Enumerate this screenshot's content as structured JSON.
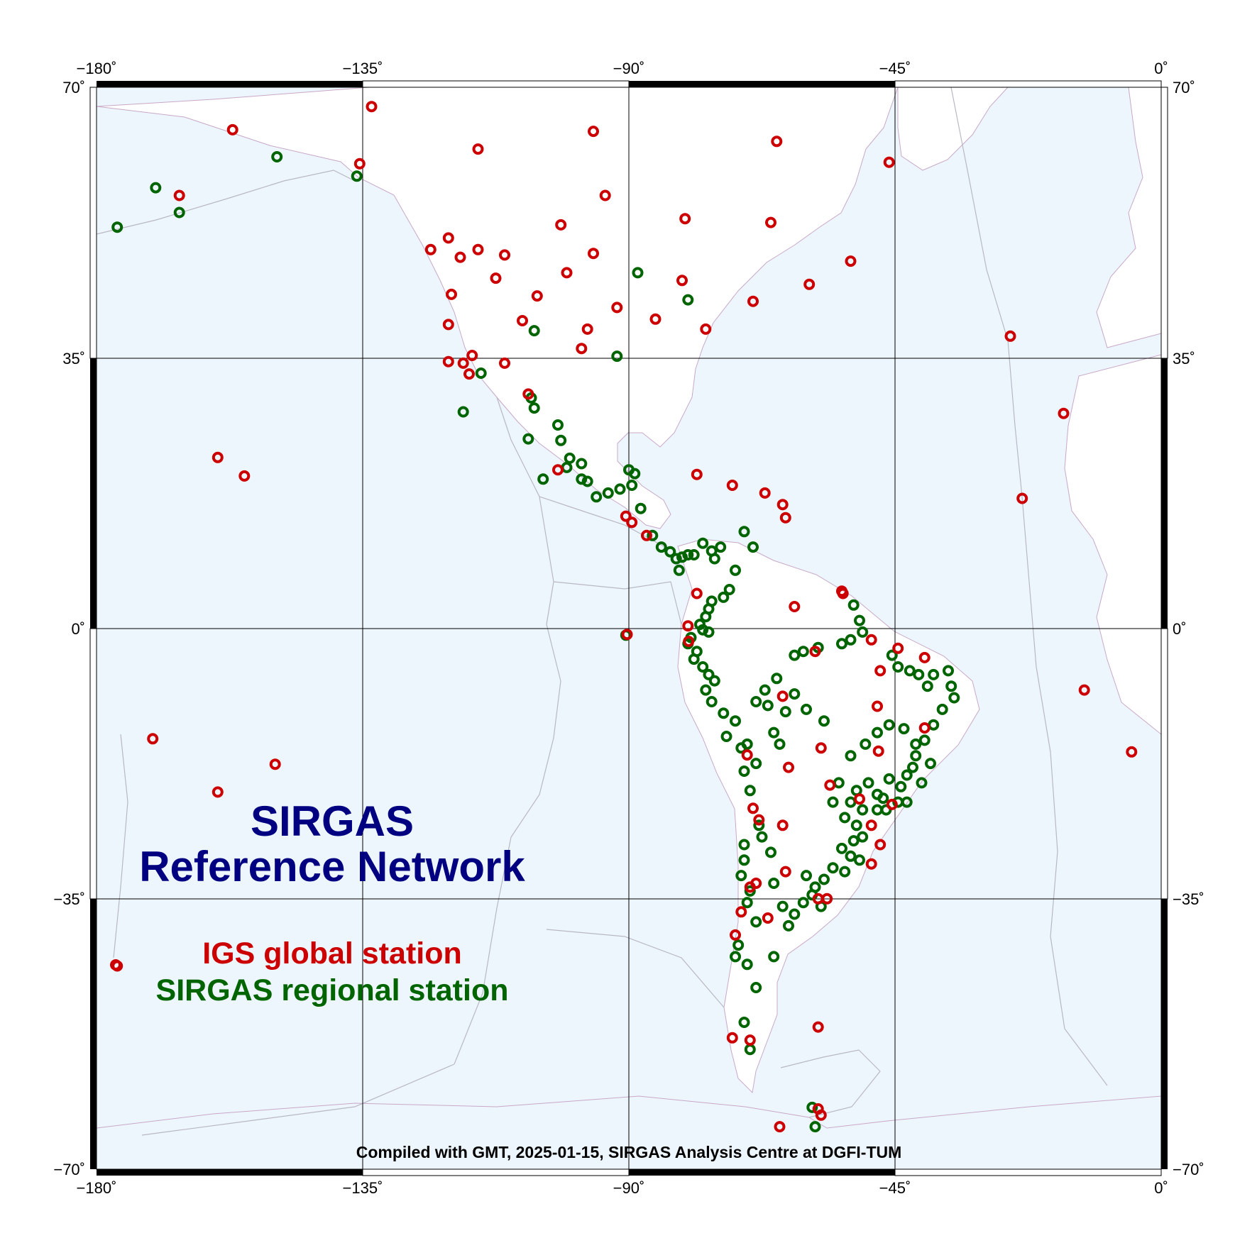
{
  "title": {
    "line1": "SIRGAS",
    "line2": "Reference Network"
  },
  "legend": {
    "igs_label": "IGS global station",
    "sirgas_label": "SIRGAS regional station"
  },
  "credit": "Compiled with GMT, 2025-01-15, SIRGAS Analysis Centre at DGFI-TUM",
  "axes": {
    "lon_ticks": [
      "−180˚",
      "−135˚",
      "−90˚",
      "−45˚",
      "0˚"
    ],
    "lat_ticks": [
      "70˚",
      "35˚",
      "0˚",
      "−35˚",
      "−70˚"
    ],
    "lon_range": [
      -180,
      0
    ],
    "lat_range": [
      -70,
      70
    ],
    "grid": true
  },
  "colors": {
    "ocean": "#eef6fd",
    "land": "#ffffff",
    "igs": "#cc0000",
    "sirgas": "#006400",
    "title": "#000080",
    "grid": "#000000",
    "plate_boundary": "#b8b8c4",
    "borders": "#d8b8d8"
  },
  "stations": {
    "igs": [
      [
        -133.5,
        67.5
      ],
      [
        -157.0,
        64.5
      ],
      [
        -96.0,
        64.3
      ],
      [
        -65.0,
        63.0
      ],
      [
        -115.5,
        62.0
      ],
      [
        -135.5,
        60.1
      ],
      [
        -46.0,
        60.3
      ],
      [
        -166.0,
        56.0
      ],
      [
        -94.0,
        56.0
      ],
      [
        -80.5,
        53.0
      ],
      [
        -66.0,
        52.5
      ],
      [
        -101.5,
        52.2
      ],
      [
        -120.5,
        50.5
      ],
      [
        -115.5,
        49.0
      ],
      [
        -123.5,
        49.0
      ],
      [
        -96.0,
        48.5
      ],
      [
        -111.0,
        48.3
      ],
      [
        -118.5,
        48.0
      ],
      [
        -52.5,
        47.5
      ],
      [
        -100.5,
        46.0
      ],
      [
        -112.5,
        45.3
      ],
      [
        -81.0,
        45.0
      ],
      [
        -59.5,
        44.5
      ],
      [
        -120.0,
        43.2
      ],
      [
        -105.5,
        43.0
      ],
      [
        -69.0,
        42.3
      ],
      [
        -92.0,
        41.5
      ],
      [
        -85.5,
        40.0
      ],
      [
        -108.0,
        39.8
      ],
      [
        -120.5,
        39.3
      ],
      [
        -77.0,
        38.7
      ],
      [
        -97.0,
        38.7
      ],
      [
        -25.5,
        37.8
      ],
      [
        -98.0,
        36.2
      ],
      [
        -116.5,
        35.3
      ],
      [
        -120.5,
        34.5
      ],
      [
        -118.0,
        34.3
      ],
      [
        -111.0,
        34.3
      ],
      [
        -117.0,
        32.9
      ],
      [
        -107.0,
        30.3
      ],
      [
        -16.5,
        27.8
      ],
      [
        -159.5,
        22.1
      ],
      [
        -155.0,
        19.7
      ],
      [
        -102.0,
        20.5
      ],
      [
        -78.5,
        19.9
      ],
      [
        -72.5,
        18.5
      ],
      [
        -67.0,
        17.5
      ],
      [
        -23.5,
        16.8
      ],
      [
        -64.0,
        16.0
      ],
      [
        -63.5,
        14.3
      ],
      [
        -90.5,
        14.5
      ],
      [
        -89.5,
        13.7
      ],
      [
        -87.0,
        12.0
      ],
      [
        -78.5,
        4.5
      ],
      [
        -54.0,
        4.8
      ],
      [
        -53.8,
        4.5
      ],
      [
        -62.0,
        2.8
      ],
      [
        -80.0,
        0.3
      ],
      [
        -90.3,
        -0.8
      ],
      [
        -79.9,
        -1.7
      ],
      [
        -49.0,
        -1.5
      ],
      [
        -44.5,
        -2.6
      ],
      [
        -58.5,
        -3.0
      ],
      [
        -40.0,
        -3.8
      ],
      [
        -47.5,
        -5.5
      ],
      [
        -13.0,
        -8.0
      ],
      [
        -64.0,
        -8.8
      ],
      [
        -48.0,
        -10.1
      ],
      [
        -40.0,
        -12.9
      ],
      [
        -170.5,
        -14.3
      ],
      [
        -5.0,
        -16.0
      ],
      [
        -57.5,
        -15.5
      ],
      [
        -47.8,
        -15.9
      ],
      [
        -70.0,
        -16.4
      ],
      [
        -149.8,
        -17.6
      ],
      [
        -63.0,
        -18.0
      ],
      [
        -56.0,
        -20.3
      ],
      [
        -159.5,
        -21.2
      ],
      [
        -51.0,
        -22.1
      ],
      [
        -69.0,
        -23.3
      ],
      [
        -45.5,
        -22.8
      ],
      [
        -68.0,
        -24.8
      ],
      [
        -64.0,
        -25.5
      ],
      [
        -49.0,
        -25.5
      ],
      [
        -47.5,
        -28.0
      ],
      [
        -49.0,
        -30.5
      ],
      [
        -63.5,
        -31.5
      ],
      [
        -68.5,
        -33.0
      ],
      [
        -58.0,
        -35.0
      ],
      [
        -56.5,
        -35.0
      ],
      [
        -69.5,
        -33.5
      ],
      [
        -71.0,
        -36.7
      ],
      [
        -66.5,
        -37.5
      ],
      [
        -72.0,
        -39.7
      ],
      [
        -176.5,
        -43.7
      ],
      [
        -58.0,
        -51.6
      ],
      [
        -69.5,
        -53.3
      ],
      [
        -72.5,
        -53.0
      ],
      [
        -57.5,
        -63.0
      ],
      [
        -58.0,
        -62.2
      ],
      [
        -64.5,
        -64.5
      ]
    ],
    "sirgas": [
      [
        -149.5,
        61.0
      ],
      [
        -136.0,
        58.5
      ],
      [
        -170.0,
        57.0
      ],
      [
        -166.0,
        53.8
      ],
      [
        -176.5,
        51.9
      ],
      [
        -88.5,
        46.0
      ],
      [
        -80.0,
        42.5
      ],
      [
        -106.0,
        38.5
      ],
      [
        -92.0,
        35.2
      ],
      [
        -115.0,
        33.0
      ],
      [
        -106.5,
        29.8
      ],
      [
        -106.0,
        28.5
      ],
      [
        -118.0,
        28.0
      ],
      [
        -102.0,
        26.3
      ],
      [
        -107.0,
        24.5
      ],
      [
        -101.5,
        24.3
      ],
      [
        -100.0,
        22.0
      ],
      [
        -98.0,
        21.3
      ],
      [
        -100.5,
        20.8
      ],
      [
        -104.5,
        19.3
      ],
      [
        -98.0,
        19.3
      ],
      [
        -97.0,
        19.0
      ],
      [
        -90.0,
        20.5
      ],
      [
        -89.0,
        20.0
      ],
      [
        -91.5,
        18.0
      ],
      [
        -89.5,
        18.5
      ],
      [
        -93.5,
        17.5
      ],
      [
        -95.5,
        17.0
      ],
      [
        -88.0,
        15.5
      ],
      [
        -86.0,
        12.0
      ],
      [
        -70.5,
        12.5
      ],
      [
        -77.5,
        11.0
      ],
      [
        -80.0,
        9.5
      ],
      [
        -81.0,
        9.2
      ],
      [
        -79.0,
        9.5
      ],
      [
        -76.0,
        10.0
      ],
      [
        -75.5,
        9.0
      ],
      [
        -74.5,
        10.5
      ],
      [
        -72.0,
        7.5
      ],
      [
        -69.0,
        10.5
      ],
      [
        -73.0,
        5.0
      ],
      [
        -74.0,
        4.0
      ],
      [
        -76.0,
        3.5
      ],
      [
        -76.5,
        2.5
      ],
      [
        -77.0,
        1.5
      ],
      [
        -78.0,
        0.5
      ],
      [
        -77.5,
        -0.2
      ],
      [
        -76.5,
        -0.5
      ],
      [
        -79.5,
        -1.2
      ],
      [
        -80.0,
        -2.0
      ],
      [
        -78.5,
        -3.0
      ],
      [
        -79.0,
        -4.0
      ],
      [
        -77.5,
        -5.0
      ],
      [
        -76.5,
        -6.0
      ],
      [
        -75.5,
        -6.8
      ],
      [
        -77.0,
        -8.0
      ],
      [
        -76.0,
        -9.5
      ],
      [
        -74.0,
        -11.0
      ],
      [
        -72.0,
        -12.0
      ],
      [
        -73.5,
        -14.0
      ],
      [
        -71.0,
        -15.5
      ],
      [
        -70.0,
        -15.0
      ],
      [
        -68.5,
        -17.5
      ],
      [
        -70.5,
        -18.5
      ],
      [
        -64.5,
        -15.0
      ],
      [
        -65.5,
        -13.5
      ],
      [
        -63.5,
        -10.8
      ],
      [
        -60.0,
        -10.5
      ],
      [
        -57.0,
        -12.0
      ],
      [
        -62.0,
        -8.5
      ],
      [
        -66.5,
        -10.0
      ],
      [
        -68.5,
        -9.5
      ],
      [
        -67.0,
        -8.0
      ],
      [
        -65.0,
        -6.5
      ],
      [
        -62.0,
        -3.5
      ],
      [
        -60.5,
        -3.0
      ],
      [
        -58.0,
        -2.5
      ],
      [
        -54.0,
        -2.0
      ],
      [
        -52.5,
        -1.5
      ],
      [
        -50.5,
        -0.5
      ],
      [
        -51.0,
        1.0
      ],
      [
        -52.0,
        3.0
      ],
      [
        -45.5,
        -3.5
      ],
      [
        -44.5,
        -5.0
      ],
      [
        -42.5,
        -5.5
      ],
      [
        -41.0,
        -6.0
      ],
      [
        -39.5,
        -7.5
      ],
      [
        -38.5,
        -6.0
      ],
      [
        -36.0,
        -5.5
      ],
      [
        -35.5,
        -7.5
      ],
      [
        -35.0,
        -9.0
      ],
      [
        -37.0,
        -10.5
      ],
      [
        -38.5,
        -12.5
      ],
      [
        -40.0,
        -14.5
      ],
      [
        -41.5,
        -16.5
      ],
      [
        -43.0,
        -19.0
      ],
      [
        -44.0,
        -20.5
      ],
      [
        -46.0,
        -19.5
      ],
      [
        -48.0,
        -21.5
      ],
      [
        -49.5,
        -20.0
      ],
      [
        -51.5,
        -21.0
      ],
      [
        -52.5,
        -22.5
      ],
      [
        -50.5,
        -23.5
      ],
      [
        -48.0,
        -23.5
      ],
      [
        -46.5,
        -23.5
      ],
      [
        -47.0,
        -22.0
      ],
      [
        -44.5,
        -22.5
      ],
      [
        -43.0,
        -22.5
      ],
      [
        -40.5,
        -20.0
      ],
      [
        -42.0,
        -18.0
      ],
      [
        -39.0,
        -17.5
      ],
      [
        -41.5,
        -15.0
      ],
      [
        -43.5,
        -13.0
      ],
      [
        -46.0,
        -12.5
      ],
      [
        -48.0,
        -13.5
      ],
      [
        -50.0,
        -15.0
      ],
      [
        -52.5,
        -16.5
      ],
      [
        -54.5,
        -20.0
      ],
      [
        -55.5,
        -22.5
      ],
      [
        -53.5,
        -24.5
      ],
      [
        -51.5,
        -25.5
      ],
      [
        -50.5,
        -27.0
      ],
      [
        -52.0,
        -27.5
      ],
      [
        -54.0,
        -28.5
      ],
      [
        -52.5,
        -29.5
      ],
      [
        -51.0,
        -30.0
      ],
      [
        -53.5,
        -31.5
      ],
      [
        -55.5,
        -31.0
      ],
      [
        -57.0,
        -32.5
      ],
      [
        -58.5,
        -33.5
      ],
      [
        -60.0,
        -32.0
      ],
      [
        -59.0,
        -34.5
      ],
      [
        -57.5,
        -36.0
      ],
      [
        -60.5,
        -35.5
      ],
      [
        -62.0,
        -37.0
      ],
      [
        -63.0,
        -38.5
      ],
      [
        -64.0,
        -36.0
      ],
      [
        -65.5,
        -33.0
      ],
      [
        -66.0,
        -29.0
      ],
      [
        -67.5,
        -27.0
      ],
      [
        -68.0,
        -25.5
      ],
      [
        -69.5,
        -21.0
      ],
      [
        -70.5,
        -28.0
      ],
      [
        -70.5,
        -30.0
      ],
      [
        -71.0,
        -32.0
      ],
      [
        -69.5,
        -34.0
      ],
      [
        -70.0,
        -35.5
      ],
      [
        -68.5,
        -38.0
      ],
      [
        -71.5,
        -41.0
      ],
      [
        -72.0,
        -42.5
      ],
      [
        -70.0,
        -43.5
      ],
      [
        -65.5,
        -42.5
      ],
      [
        -68.5,
        -46.5
      ],
      [
        -70.5,
        -51.0
      ],
      [
        -69.5,
        -54.5
      ],
      [
        -59.0,
        -62.0
      ],
      [
        -58.5,
        -64.5
      ],
      [
        -90.5,
        -0.9
      ],
      [
        -81.5,
        7.5
      ],
      [
        -83.0,
        9.9
      ],
      [
        -84.5,
        10.5
      ],
      [
        -82.0,
        9.0
      ]
    ]
  }
}
